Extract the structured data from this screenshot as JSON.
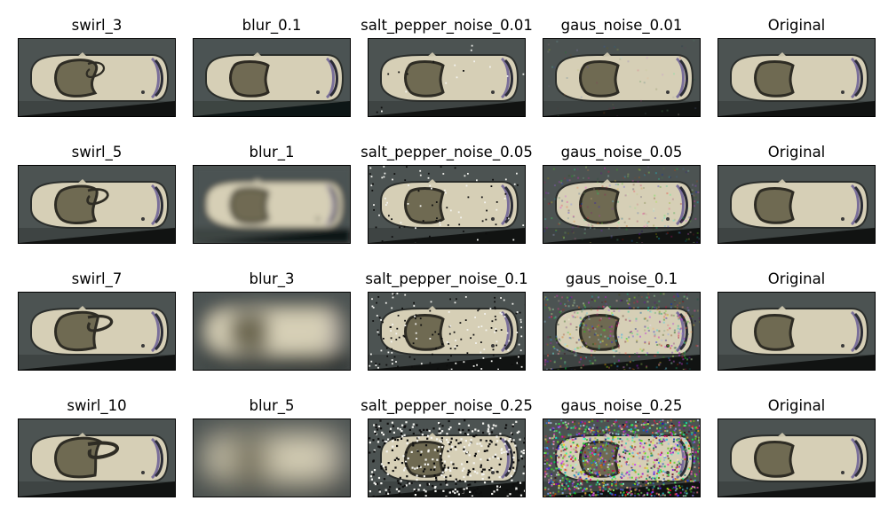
{
  "figure": {
    "rows": [
      {
        "panels": [
          {
            "title": "swirl_3",
            "effect": "swirl",
            "level": 3
          },
          {
            "title": "blur_0.1",
            "effect": "blur",
            "level": 0.1
          },
          {
            "title": "salt_pepper_noise_0.01",
            "effect": "salt_pepper",
            "level": 0.01
          },
          {
            "title": "gaus_noise_0.01",
            "effect": "gaus",
            "level": 0.01
          },
          {
            "title": "Original",
            "effect": "none",
            "level": 0
          }
        ]
      },
      {
        "panels": [
          {
            "title": "swirl_5",
            "effect": "swirl",
            "level": 5
          },
          {
            "title": "blur_1",
            "effect": "blur",
            "level": 1
          },
          {
            "title": "salt_pepper_noise_0.05",
            "effect": "salt_pepper",
            "level": 0.05
          },
          {
            "title": "gaus_noise_0.05",
            "effect": "gaus",
            "level": 0.05
          },
          {
            "title": "Original",
            "effect": "none",
            "level": 0
          }
        ]
      },
      {
        "panels": [
          {
            "title": "swirl_7",
            "effect": "swirl",
            "level": 7
          },
          {
            "title": "blur_3",
            "effect": "blur",
            "level": 3
          },
          {
            "title": "salt_pepper_noise_0.1",
            "effect": "salt_pepper",
            "level": 0.1
          },
          {
            "title": "gaus_noise_0.1",
            "effect": "gaus",
            "level": 0.1
          },
          {
            "title": "Original",
            "effect": "none",
            "level": 0
          }
        ]
      },
      {
        "panels": [
          {
            "title": "swirl_10",
            "effect": "swirl",
            "level": 10
          },
          {
            "title": "blur_5",
            "effect": "blur",
            "level": 5
          },
          {
            "title": "salt_pepper_noise_0.25",
            "effect": "salt_pepper",
            "level": 0.25
          },
          {
            "title": "gaus_noise_0.25",
            "effect": "gaus",
            "level": 0.25
          },
          {
            "title": "Original",
            "effect": "none",
            "level": 0
          }
        ]
      }
    ]
  },
  "colors": {
    "background_road": "#4c5352",
    "car_body": "#d6cfb6",
    "car_shadow": "#2a2d2b",
    "window": "#6f6a52",
    "accent": "#7a6f9a"
  }
}
